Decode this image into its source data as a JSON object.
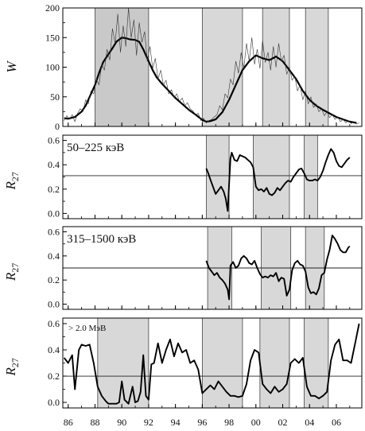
{
  "chart_data": {
    "type": "line",
    "x_ticks": [
      86,
      88,
      90,
      92,
      94,
      96,
      98,
      0,
      2,
      4,
      6
    ],
    "x_tick_labels": [
      "86",
      "88",
      "90",
      "92",
      "94",
      "96",
      "98",
      "00",
      "02",
      "04",
      "06"
    ],
    "xlim": [
      1985.6,
      2007.9
    ],
    "panels": [
      {
        "id": "W",
        "ylabel": "W",
        "label": "",
        "ylim": [
          0,
          200
        ],
        "yticks": [
          0,
          50,
          100,
          150,
          200
        ],
        "yticklabels": [
          "0",
          "50",
          "100",
          "150",
          "200"
        ],
        "ref_line": null,
        "shaded": [
          [
            1988.0,
            1992.0
          ],
          [
            1996.0,
            1999.0
          ],
          [
            2000.5,
            2002.5
          ],
          [
            2003.7,
            2005.4
          ]
        ],
        "series": [
          {
            "style": "smoothed",
            "x": [
              1985.7,
              1986.0,
              1986.5,
              1987.0,
              1987.3,
              1987.6,
              1988.0,
              1988.3,
              1988.6,
              1989.0,
              1989.3,
              1989.6,
              1990.0,
              1990.3,
              1990.6,
              1991.0,
              1991.3,
              1991.6,
              1992.0,
              1992.3,
              1992.6,
              1993.0,
              1993.5,
              1994.0,
              1994.5,
              1995.0,
              1995.5,
              1996.0,
              1996.3,
              1996.6,
              1997.0,
              1997.5,
              1998.0,
              1998.5,
              1999.0,
              1999.5,
              2000.0,
              2000.5,
              2001.0,
              2001.5,
              2002.0,
              2002.5,
              2003.0,
              2003.5,
              2004.0,
              2004.5,
              2005.0,
              2005.5,
              2006.0,
              2006.5,
              2007.0,
              2007.5
            ],
            "y": [
              14,
              13,
              16,
              25,
              35,
              50,
              70,
              90,
              108,
              122,
              132,
              143,
              150,
              149,
              147,
              146,
              143,
              130,
              110,
              95,
              83,
              72,
              60,
              48,
              38,
              28,
              20,
              11,
              8,
              9,
              12,
              24,
              45,
              70,
              95,
              110,
              120,
              115,
              112,
              118,
              110,
              95,
              80,
              60,
              45,
              35,
              28,
              22,
              16,
              12,
              8,
              6
            ]
          },
          {
            "style": "monthly",
            "x": [
              1985.7,
              1985.9,
              1986.1,
              1986.3,
              1986.5,
              1986.7,
              1986.9,
              1987.1,
              1987.3,
              1987.5,
              1987.7,
              1987.9,
              1988.1,
              1988.3,
              1988.5,
              1988.7,
              1988.9,
              1989.1,
              1989.3,
              1989.5,
              1989.7,
              1989.9,
              1990.1,
              1990.3,
              1990.5,
              1990.7,
              1990.9,
              1991.1,
              1991.3,
              1991.5,
              1991.7,
              1991.9,
              1992.1,
              1992.3,
              1992.5,
              1992.7,
              1992.9,
              1993.1,
              1993.3,
              1993.5,
              1993.7,
              1993.9,
              1994.1,
              1994.3,
              1994.5,
              1994.7,
              1994.9,
              1995.1,
              1995.3,
              1995.5,
              1995.7,
              1995.9,
              1996.1,
              1996.3,
              1996.5,
              1996.7,
              1996.9,
              1997.1,
              1997.3,
              1997.5,
              1997.7,
              1997.9,
              1998.1,
              1998.3,
              1998.5,
              1998.7,
              1998.9,
              1999.1,
              1999.3,
              1999.5,
              1999.7,
              1999.9,
              2000.1,
              2000.3,
              2000.5,
              2000.7,
              2000.9,
              2001.1,
              2001.3,
              2001.5,
              2001.7,
              2001.9,
              2002.1,
              2002.3,
              2002.5,
              2002.7,
              2002.9,
              2003.1,
              2003.3,
              2003.5,
              2003.7,
              2003.9,
              2004.1,
              2004.3,
              2004.5,
              2004.7,
              2004.9,
              2005.1,
              2005.3,
              2005.5,
              2005.7,
              2005.9,
              2006.1,
              2006.3,
              2006.5,
              2006.7,
              2006.9,
              2007.1,
              2007.3,
              2007.5,
              2007.7
            ],
            "y": [
              10,
              18,
              12,
              20,
              8,
              22,
              30,
              25,
              45,
              38,
              60,
              55,
              80,
              70,
              105,
              95,
              130,
              112,
              165,
              140,
              190,
              125,
              170,
              135,
              200,
              150,
              180,
              120,
              175,
              142,
              160,
              110,
              135,
              98,
              115,
              80,
              95,
              70,
              78,
              55,
              62,
              48,
              55,
              42,
              48,
              35,
              40,
              30,
              26,
              20,
              22,
              10,
              14,
              6,
              10,
              12,
              16,
              20,
              35,
              28,
              55,
              48,
              80,
              70,
              110,
              90,
              125,
              98,
              140,
              110,
              150,
              105,
              130,
              98,
              145,
              108,
              125,
              95,
              135,
              100,
              140,
              110,
              120,
              88,
              100,
              78,
              85,
              60,
              70,
              45,
              60,
              38,
              50,
              32,
              38,
              25,
              30,
              18,
              25,
              15,
              20,
              12,
              16,
              8,
              12,
              6,
              10,
              5,
              8,
              4,
              6
            ]
          }
        ]
      },
      {
        "id": "R27_low",
        "ylabel": "R27",
        "label": "50–225 кэВ",
        "ylim": [
          -0.03,
          0.63
        ],
        "yticks": [
          0.0,
          0.2,
          0.4,
          0.6
        ],
        "yticklabels": [
          "0.0",
          "0.2",
          "0.4",
          "0.6"
        ],
        "ref_line": 0.31,
        "shaded": [
          [
            1996.3,
            1998.0
          ],
          [
            1999.8,
            2002.5
          ],
          [
            2003.6,
            2004.6
          ]
        ],
        "series": [
          {
            "style": "line",
            "x": [
              1996.3,
              1996.45,
              1996.6,
              1996.8,
              1997.0,
              1997.2,
              1997.4,
              1997.6,
              1997.75,
              1997.9,
              1998.0,
              1998.1,
              1998.2,
              1998.4,
              1998.6,
              1998.8,
              1999.0,
              1999.2,
              1999.4,
              1999.6,
              1999.8,
              2000.0,
              2000.2,
              2000.4,
              2000.6,
              2000.8,
              2001.0,
              2001.2,
              2001.4,
              2001.6,
              2001.8,
              2002.0,
              2002.2,
              2002.4,
              2002.6,
              2002.8,
              2003.0,
              2003.2,
              2003.4,
              2003.6,
              2003.8,
              2004.0,
              2004.2,
              2004.4,
              2004.6,
              2004.8,
              2005.0,
              2005.2,
              2005.4,
              2005.6,
              2005.8,
              2006.0,
              2006.2,
              2006.4,
              2006.6,
              2006.8,
              2007.0
            ],
            "y": [
              0.37,
              0.33,
              0.28,
              0.22,
              0.16,
              0.19,
              0.22,
              0.18,
              0.12,
              0.02,
              0.24,
              0.45,
              0.5,
              0.44,
              0.43,
              0.48,
              0.47,
              0.46,
              0.44,
              0.42,
              0.38,
              0.22,
              0.19,
              0.2,
              0.18,
              0.21,
              0.16,
              0.15,
              0.17,
              0.21,
              0.19,
              0.22,
              0.25,
              0.27,
              0.26,
              0.3,
              0.33,
              0.36,
              0.37,
              0.33,
              0.28,
              0.27,
              0.27,
              0.28,
              0.27,
              0.3,
              0.35,
              0.42,
              0.48,
              0.53,
              0.5,
              0.43,
              0.39,
              0.38,
              0.41,
              0.44,
              0.46
            ]
          }
        ]
      },
      {
        "id": "R27_mid",
        "ylabel": "R27",
        "label": "315–1500 кэВ",
        "ylim": [
          -0.03,
          0.63
        ],
        "yticks": [
          0.0,
          0.2,
          0.4,
          0.6
        ],
        "yticklabels": [
          "0.0",
          "0.2",
          "0.4",
          "0.6"
        ],
        "ref_line": 0.3,
        "shaded": [
          [
            1996.4,
            1998.2
          ],
          [
            2000.4,
            2002.6
          ],
          [
            2003.7,
            2005.1
          ]
        ],
        "series": [
          {
            "style": "line",
            "x": [
              1996.3,
              1996.5,
              1996.7,
              1996.9,
              1997.1,
              1997.3,
              1997.5,
              1997.7,
              1997.9,
              1998.0,
              1998.1,
              1998.3,
              1998.5,
              1998.7,
              1998.9,
              1999.1,
              1999.3,
              1999.5,
              1999.7,
              1999.9,
              2000.1,
              2000.3,
              2000.5,
              2000.7,
              2000.9,
              2001.1,
              2001.3,
              2001.5,
              2001.7,
              2001.9,
              2002.1,
              2002.3,
              2002.5,
              2002.7,
              2002.9,
              2003.1,
              2003.3,
              2003.5,
              2003.7,
              2003.9,
              2004.1,
              2004.3,
              2004.5,
              2004.7,
              2004.9,
              2005.1,
              2005.3,
              2005.5,
              2005.7,
              2005.9,
              2006.1,
              2006.3,
              2006.5,
              2006.7,
              2006.9,
              2007.0
            ],
            "y": [
              0.36,
              0.3,
              0.27,
              0.24,
              0.26,
              0.22,
              0.2,
              0.17,
              0.12,
              0.04,
              0.32,
              0.35,
              0.3,
              0.32,
              0.38,
              0.4,
              0.38,
              0.34,
              0.33,
              0.36,
              0.3,
              0.25,
              0.22,
              0.23,
              0.22,
              0.24,
              0.23,
              0.26,
              0.19,
              0.22,
              0.21,
              0.07,
              0.12,
              0.28,
              0.34,
              0.36,
              0.33,
              0.32,
              0.27,
              0.14,
              0.09,
              0.1,
              0.08,
              0.13,
              0.24,
              0.26,
              0.37,
              0.45,
              0.57,
              0.54,
              0.5,
              0.45,
              0.43,
              0.43,
              0.47,
              0.48
            ]
          }
        ]
      },
      {
        "id": "R27_high",
        "ylabel": "R27",
        "label": "> 2.0 МэВ",
        "ylim": [
          -0.03,
          0.63
        ],
        "yticks": [
          0.0,
          0.2,
          0.4,
          0.6
        ],
        "yticklabels": [
          "0.0",
          "0.2",
          "0.4",
          "0.6"
        ],
        "ref_line": 0.2,
        "shaded": [
          [
            1988.2,
            1992.0
          ],
          [
            1996.0,
            1999.0
          ],
          [
            2000.3,
            2002.5
          ],
          [
            2003.6,
            2005.4
          ]
        ],
        "series": [
          {
            "style": "line",
            "x": [
              1985.7,
              1986.0,
              1986.3,
              1986.5,
              1986.8,
              1987.0,
              1987.3,
              1987.6,
              1987.9,
              1988.2,
              1988.5,
              1988.8,
              1989.0,
              1989.3,
              1989.6,
              1989.8,
              1990.0,
              1990.2,
              1990.5,
              1990.8,
              1991.0,
              1991.2,
              1991.4,
              1991.6,
              1991.8,
              1992.0,
              1992.2,
              1992.4,
              1992.7,
              1993.0,
              1993.3,
              1993.6,
              1993.9,
              1994.2,
              1994.5,
              1994.8,
              1995.1,
              1995.4,
              1995.7,
              1996.0,
              1996.3,
              1996.6,
              1996.9,
              1997.2,
              1997.5,
              1997.8,
              1998.1,
              1998.4,
              1998.7,
              1999.0,
              1999.3,
              1999.6,
              1999.9,
              2000.2,
              2000.5,
              2000.8,
              2001.1,
              2001.4,
              2001.7,
              2002.0,
              2002.3,
              2002.6,
              2002.9,
              2003.2,
              2003.5,
              2003.8,
              2004.1,
              2004.4,
              2004.7,
              2005.0,
              2005.3,
              2005.6,
              2005.9,
              2006.2,
              2006.5,
              2006.8,
              2007.1,
              2007.4,
              2007.7
            ],
            "y": [
              0.34,
              0.3,
              0.36,
              0.1,
              0.4,
              0.44,
              0.43,
              0.44,
              0.3,
              0.12,
              0.05,
              0.01,
              -0.01,
              -0.01,
              -0.01,
              0.0,
              0.16,
              0.02,
              -0.01,
              0.12,
              0.0,
              0.01,
              0.08,
              0.36,
              0.05,
              0.02,
              0.29,
              0.3,
              0.45,
              0.3,
              0.4,
              0.48,
              0.35,
              0.45,
              0.38,
              0.4,
              0.3,
              0.32,
              0.25,
              0.07,
              0.1,
              0.13,
              0.1,
              0.16,
              0.12,
              0.08,
              0.05,
              0.05,
              0.04,
              0.05,
              0.14,
              0.32,
              0.4,
              0.38,
              0.14,
              0.1,
              0.07,
              0.12,
              0.08,
              0.1,
              0.14,
              0.3,
              0.33,
              0.3,
              0.34,
              0.12,
              0.05,
              0.05,
              0.03,
              0.05,
              0.08,
              0.32,
              0.44,
              0.48,
              0.32,
              0.32,
              0.3,
              0.45,
              0.6
            ]
          }
        ]
      }
    ]
  }
}
